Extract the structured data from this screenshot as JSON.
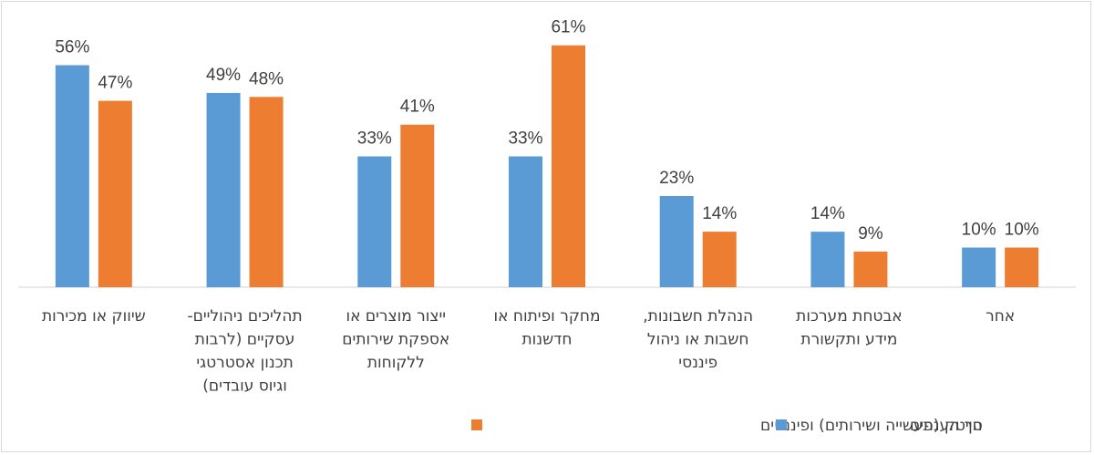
{
  "chart_data": {
    "type": "bar",
    "categories": [
      [
        "שיווק או מכירות"
      ],
      [
        "תהליכים ניהוליים-",
        "עסקיים (לרבות",
        "תכנון אסטרטגי",
        "וגיוס עובדים)"
      ],
      [
        "ייצור מוצרים או",
        "אספקת שירותים",
        "ללקוחות"
      ],
      [
        "מחקר ופיתוח או",
        "חדשנות"
      ],
      [
        "הנהלת חשבונות,",
        "חשבות או ניהול",
        "פיננסי"
      ],
      [
        "אבטחת מערכות",
        "מידע ותקשורת"
      ],
      [
        "אחר"
      ]
    ],
    "series": [
      {
        "name": "סך הענפים",
        "color": "#5b9bd5",
        "values": [
          56,
          49,
          33,
          33,
          23,
          14,
          10
        ],
        "labels": [
          "56%",
          "49%",
          "33%",
          "33%",
          "23%",
          "14%",
          "10%"
        ]
      },
      {
        "name": "הייטק (תעשייה ושירותים) ופיננסים",
        "color": "#ed7d31",
        "values": [
          47,
          48,
          41,
          61,
          14,
          9,
          10
        ],
        "labels": [
          "47%",
          "48%",
          "41%",
          "61%",
          "14%",
          "9%",
          "10%"
        ]
      }
    ],
    "ylim": [
      0,
      66
    ],
    "grid": false,
    "legend_position": "bottom",
    "title": "",
    "xlabel": "",
    "ylabel": ""
  }
}
